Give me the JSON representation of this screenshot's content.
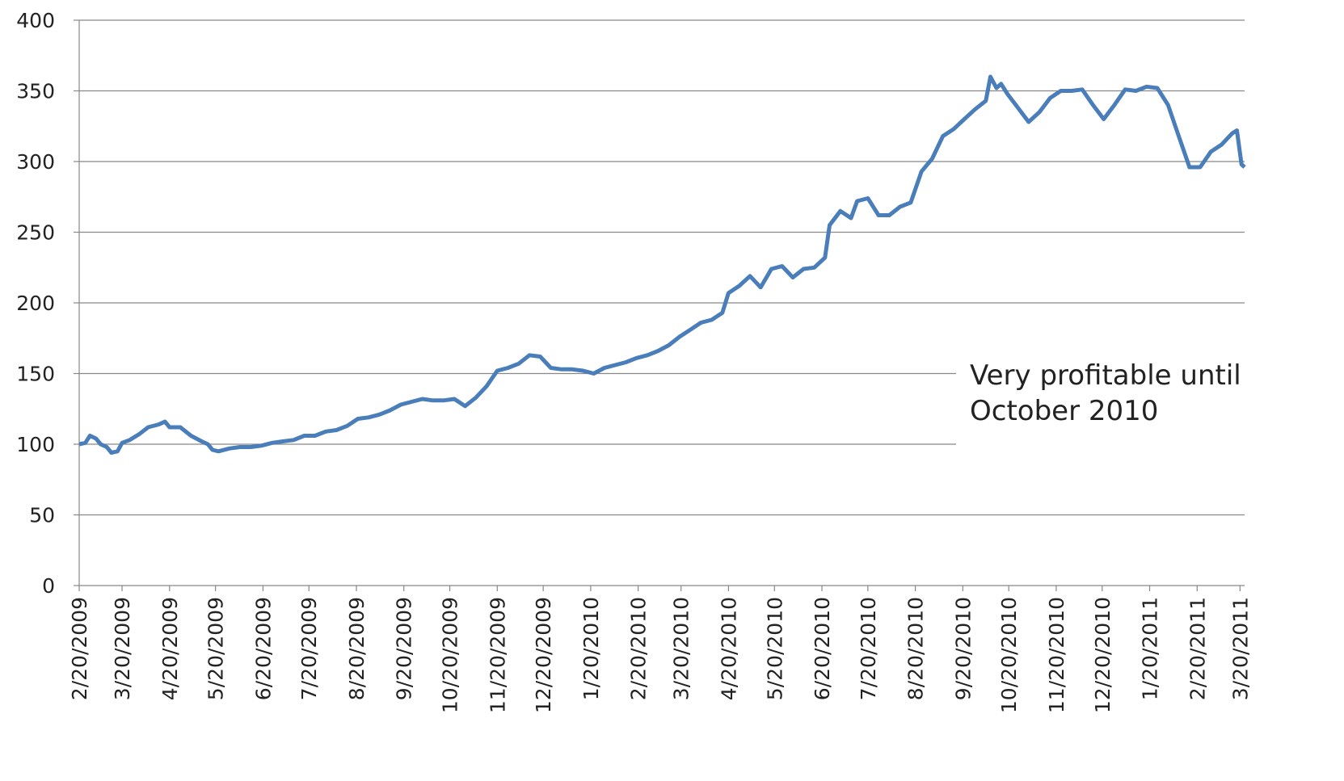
{
  "chart_data": {
    "type": "line",
    "annotation": [
      "Very profitable until",
      "October 2010"
    ],
    "x": [
      "2/20/2009",
      "2/24/2009",
      "2/27/2009",
      "3/3/2009",
      "3/6/2009",
      "3/10/2009",
      "3/13/2009",
      "3/17/2009",
      "3/20/2009",
      "3/25/2009",
      "3/31/2009",
      "4/6/2009",
      "4/13/2009",
      "4/17/2009",
      "4/20/2009",
      "4/27/2009",
      "5/4/2009",
      "5/11/2009",
      "5/15/2009",
      "5/18/2009",
      "5/22/2009",
      "5/29/2009",
      "6/5/2009",
      "6/12/2009",
      "6/19/2009",
      "6/26/2009",
      "7/3/2009",
      "7/10/2009",
      "7/17/2009",
      "7/24/2009",
      "7/31/2009",
      "8/7/2009",
      "8/14/2009",
      "8/21/2009",
      "8/28/2009",
      "9/4/2009",
      "9/11/2009",
      "9/18/2009",
      "9/25/2009",
      "10/2/2009",
      "10/9/2009",
      "10/16/2009",
      "10/23/2009",
      "10/30/2009",
      "11/6/2009",
      "11/13/2009",
      "11/20/2009",
      "11/27/2009",
      "12/4/2009",
      "12/11/2009",
      "12/18/2009",
      "12/25/2009",
      "1/1/2010",
      "1/8/2010",
      "1/15/2010",
      "1/22/2010",
      "1/29/2010",
      "2/5/2010",
      "2/12/2010",
      "2/19/2010",
      "2/26/2010",
      "3/5/2010",
      "3/12/2010",
      "3/19/2010",
      "3/26/2010",
      "4/2/2010",
      "4/9/2010",
      "4/16/2010",
      "4/20/2010",
      "4/27/2010",
      "5/4/2010",
      "5/11/2010",
      "5/18/2010",
      "5/25/2010",
      "6/1/2010",
      "6/8/2010",
      "6/15/2010",
      "6/22/2010",
      "6/25/2010",
      "7/2/2010",
      "7/9/2010",
      "7/13/2010",
      "7/20/2010",
      "7/27/2010",
      "8/3/2010",
      "8/10/2010",
      "8/17/2010",
      "8/24/2010",
      "8/31/2010",
      "9/7/2010",
      "9/14/2010",
      "9/21/2010",
      "9/28/2010",
      "10/5/2010",
      "10/8/2010",
      "10/12/2010",
      "10/15/2010",
      "10/19/2010",
      "10/26/2010",
      "11/2/2010",
      "11/9/2010",
      "11/16/2010",
      "11/23/2010",
      "11/30/2010",
      "12/7/2010",
      "12/14/2010",
      "12/21/2010",
      "12/28/2010",
      "1/4/2011",
      "1/11/2011",
      "1/18/2011",
      "1/25/2011",
      "2/1/2011",
      "2/8/2011",
      "2/15/2011",
      "2/22/2011",
      "3/1/2011",
      "3/8/2011",
      "3/15/2011",
      "3/18/2011",
      "3/21/2011",
      "3/23/2011"
    ],
    "series": [
      {
        "color": "#4a7ebb",
        "values": [
          100,
          101,
          106,
          104,
          100,
          98,
          94,
          95,
          101,
          103,
          107,
          112,
          114,
          116,
          112,
          112,
          106,
          102,
          100,
          96,
          95,
          97,
          98,
          98,
          99,
          101,
          102,
          103,
          106,
          106,
          109,
          110,
          113,
          118,
          119,
          121,
          124,
          128,
          130,
          132,
          131,
          131,
          132,
          127,
          133,
          141,
          152,
          154,
          157,
          163,
          162,
          154,
          153,
          153,
          152,
          150,
          154,
          156,
          158,
          161,
          163,
          166,
          170,
          176,
          181,
          186,
          188,
          193,
          207,
          212,
          219,
          211,
          224,
          226,
          218,
          224,
          225,
          232,
          255,
          265,
          260,
          272,
          274,
          262,
          262,
          268,
          271,
          293,
          302,
          318,
          323,
          330,
          337,
          343,
          360,
          352,
          355,
          348,
          338,
          328,
          335,
          345,
          350,
          350,
          351,
          340,
          330,
          340,
          351,
          350,
          353,
          352,
          340,
          318,
          296,
          296,
          307,
          312,
          320,
          322,
          298,
          296
        ]
      }
    ],
    "xlim": [
      "2/20/2009",
      "3/23/2011"
    ],
    "xticks": [
      "2/20/2009",
      "3/20/2009",
      "4/20/2009",
      "5/20/2009",
      "6/20/2009",
      "7/20/2009",
      "8/20/2009",
      "9/20/2009",
      "10/20/2009",
      "11/20/2009",
      "12/20/2009",
      "1/20/2010",
      "2/20/2010",
      "3/20/2010",
      "4/20/2010",
      "5/20/2010",
      "6/20/2010",
      "7/20/2010",
      "8/20/2010",
      "9/20/2010",
      "10/20/2010",
      "11/20/2010",
      "12/20/2010",
      "1/20/2011",
      "2/20/2011",
      "3/20/2011"
    ],
    "ylim": [
      0,
      400
    ],
    "yticks": [
      0,
      50,
      100,
      150,
      200,
      250,
      300,
      350,
      400
    ],
    "grid": true
  }
}
